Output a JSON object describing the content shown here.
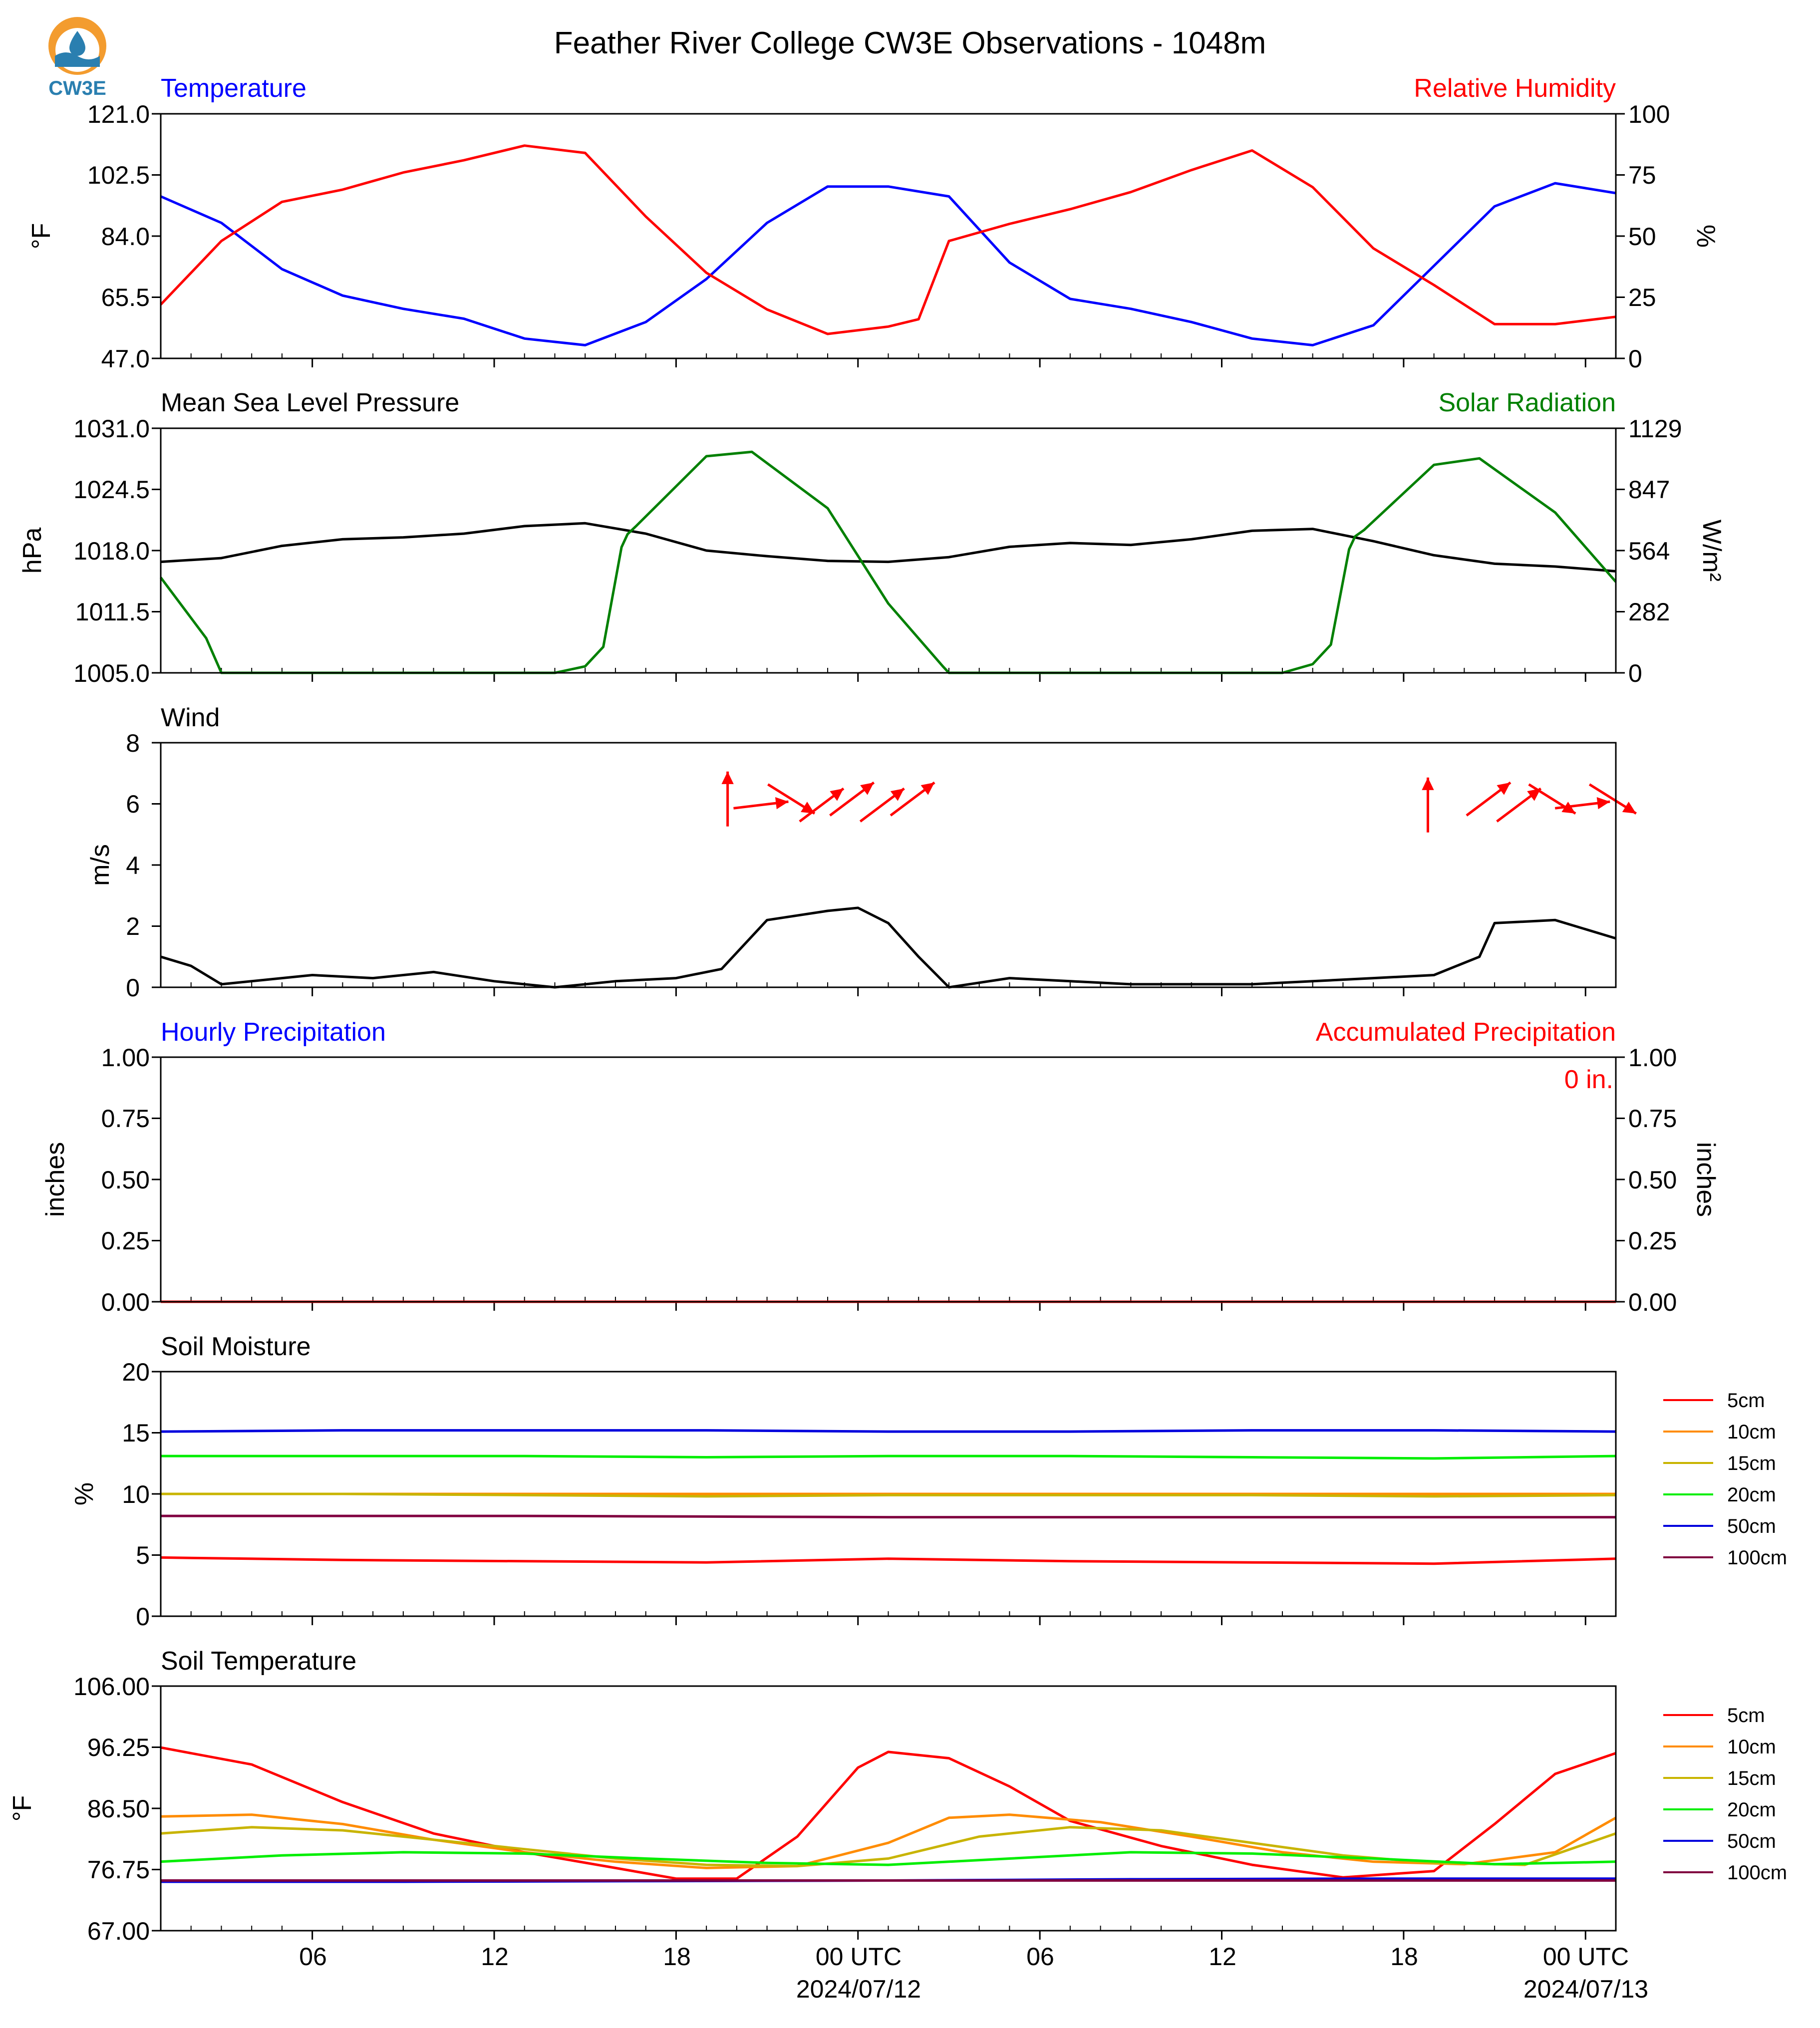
{
  "header": {
    "title": "Feather River College CW3E Observations - 1048m",
    "logo_text": "CW3E"
  },
  "colors": {
    "red": "#ff0000",
    "blue": "#0000ff",
    "green": "#008000",
    "black": "#000000",
    "soil_5cm": "#ff0000",
    "soil_10cm": "#ff8c00",
    "soil_15cm": "#c8b400",
    "soil_20cm": "#00ee00",
    "soil_50cm": "#0000dd",
    "soil_100cm": "#800040"
  },
  "time_axis": {
    "range_hours": [
      -23,
      25
    ],
    "tick_hours": [
      -18,
      -12,
      -6,
      0,
      6,
      12,
      18,
      24
    ],
    "tick_labels": [
      "06",
      "12",
      "18",
      "00 UTC",
      "06",
      "12",
      "18",
      "00 UTC"
    ],
    "date_labels": [
      "2024/07/12",
      "2024/07/13"
    ]
  },
  "panels": {
    "temp_rh": {
      "left_title": "Temperature",
      "right_title": "Relative Humidity",
      "left_unit": "°F",
      "right_unit": "%",
      "left_ticks": [
        "121.0",
        "102.5",
        "84.0",
        "65.5",
        "47.0"
      ],
      "right_ticks": [
        "100",
        "75",
        "50",
        "25",
        "0"
      ]
    },
    "pressure_solar": {
      "left_title": "Mean Sea Level Pressure",
      "right_title": "Solar Radiation",
      "left_unit": "hPa",
      "right_unit": "W/m²",
      "left_ticks": [
        "1031.0",
        "1024.5",
        "1018.0",
        "1011.5",
        "1005.0"
      ],
      "right_ticks": [
        "1129",
        "847",
        "564",
        "282",
        "0"
      ]
    },
    "wind": {
      "left_title": "Wind",
      "left_unit": "m/s",
      "left_ticks": [
        "8",
        "6",
        "4",
        "2",
        "0"
      ]
    },
    "precip": {
      "left_title": "Hourly Precipitation",
      "right_title": "Accumulated Precipitation",
      "left_unit": "inches",
      "right_unit": "inches",
      "left_ticks": [
        "1.00",
        "0.75",
        "0.50",
        "0.25",
        "0.00"
      ],
      "right_ticks": [
        "1.00",
        "0.75",
        "0.50",
        "0.25",
        "0.00"
      ],
      "accum_label": "0 in."
    },
    "soil_moisture": {
      "left_title": "Soil Moisture",
      "left_unit": "%",
      "left_ticks": [
        "20",
        "15",
        "10",
        "5",
        "0"
      ]
    },
    "soil_temp": {
      "left_title": "Soil Temperature",
      "left_unit": "°F",
      "left_ticks": [
        "106.00",
        "96.25",
        "86.50",
        "76.75",
        "67.00"
      ]
    }
  },
  "legend": {
    "items": [
      "5cm",
      "10cm",
      "15cm",
      "20cm",
      "50cm",
      "100cm"
    ]
  },
  "chart_data": [
    {
      "type": "line",
      "title": "Temperature",
      "ylabel": "°F",
      "ylim": [
        47,
        121
      ],
      "x_unit": "hours relative to 2024/07/12 00 UTC",
      "series": [
        {
          "name": "Temperature",
          "color": "#0000ff",
          "x": [
            -23,
            -21,
            -19,
            -17,
            -15,
            -13,
            -11,
            -9,
            -7,
            -5,
            -3,
            -1,
            1,
            3,
            5,
            7,
            9,
            11,
            13,
            15,
            17,
            19,
            21,
            23,
            25
          ],
          "y": [
            96,
            88,
            74,
            66,
            62,
            59,
            53,
            51,
            58,
            71,
            88,
            99,
            99,
            96,
            76,
            65,
            62,
            58,
            53,
            51,
            57,
            75,
            93,
            100,
            97
          ]
        }
      ]
    },
    {
      "type": "line",
      "title": "Relative Humidity",
      "ylabel": "%",
      "ylim": [
        0,
        100
      ],
      "x_unit": "hours relative to 2024/07/12 00 UTC",
      "series": [
        {
          "name": "Relative Humidity",
          "color": "#ff0000",
          "x": [
            -23,
            -21,
            -19,
            -17,
            -15,
            -13,
            -11,
            -9,
            -7,
            -5,
            -3,
            -1,
            1,
            2,
            3,
            5,
            7,
            9,
            11,
            13,
            15,
            17,
            19,
            21,
            23,
            25
          ],
          "y": [
            22,
            48,
            64,
            69,
            76,
            81,
            87,
            84,
            58,
            35,
            20,
            10,
            13,
            16,
            48,
            55,
            61,
            68,
            77,
            85,
            70,
            45,
            30,
            14,
            14,
            17
          ]
        }
      ]
    },
    {
      "type": "line",
      "title": "Mean Sea Level Pressure",
      "ylabel": "hPa",
      "ylim": [
        1005,
        1031
      ],
      "x_unit": "hours relative to 2024/07/12 00 UTC",
      "series": [
        {
          "name": "Mean Sea Level Pressure",
          "color": "#000000",
          "x": [
            -23,
            -21,
            -19,
            -17,
            -15,
            -13,
            -11,
            -9,
            -7,
            -5,
            -3,
            -1,
            1,
            3,
            5,
            7,
            9,
            11,
            13,
            15,
            17,
            19,
            21,
            23,
            25
          ],
          "y": [
            1016.8,
            1017.2,
            1018.5,
            1019.2,
            1019.4,
            1019.8,
            1020.6,
            1020.9,
            1019.8,
            1018.0,
            1017.4,
            1016.9,
            1016.8,
            1017.3,
            1018.4,
            1018.8,
            1018.6,
            1019.2,
            1020.1,
            1020.3,
            1019.0,
            1017.5,
            1016.6,
            1016.3,
            1015.8
          ]
        }
      ]
    },
    {
      "type": "line",
      "title": "Solar Radiation",
      "ylabel": "W/m²",
      "ylim": [
        0,
        1129
      ],
      "x_unit": "hours relative to 2024/07/12 00 UTC",
      "series": [
        {
          "name": "Solar Radiation",
          "color": "#008000",
          "x": [
            -23,
            -21.5,
            -21,
            -10,
            -9,
            -8.4,
            -7.8,
            -7.6,
            -7.3,
            -5,
            -3.5,
            -1,
            1,
            2.8,
            3.0,
            14,
            15,
            15.6,
            16.2,
            16.4,
            16.7,
            19,
            20.5,
            23,
            25
          ],
          "y": [
            440,
            160,
            0,
            0,
            30,
            120,
            580,
            640,
            680,
            1000,
            1020,
            760,
            320,
            30,
            0,
            0,
            40,
            130,
            570,
            630,
            660,
            960,
            990,
            740,
            420
          ]
        }
      ]
    },
    {
      "type": "line",
      "title": "Wind",
      "ylabel": "m/s",
      "ylim": [
        0,
        8
      ],
      "x_unit": "hours relative to 2024/07/12 00 UTC",
      "series": [
        {
          "name": "Wind",
          "color": "#000000",
          "x": [
            -23,
            -22,
            -21,
            -18,
            -16,
            -14,
            -12,
            -10,
            -8,
            -6,
            -4.5,
            -3,
            -1,
            0,
            1,
            2,
            3,
            5,
            7,
            9,
            11,
            13,
            15,
            17,
            19,
            20.5,
            21,
            23,
            25
          ],
          "y": [
            1.0,
            0.7,
            0.1,
            0.4,
            0.3,
            0.5,
            0.2,
            0.0,
            0.2,
            0.3,
            0.6,
            2.2,
            2.5,
            2.6,
            2.1,
            1.0,
            0.0,
            0.3,
            0.2,
            0.1,
            0.1,
            0.1,
            0.2,
            0.3,
            0.4,
            1.0,
            2.1,
            2.2,
            1.6
          ]
        }
      ],
      "wind_vectors": [
        {
          "x": -4.3,
          "direction": "N"
        },
        {
          "x": -3.2,
          "direction": "E"
        },
        {
          "x": -2.2,
          "direction": "SE"
        },
        {
          "x": -1.2,
          "direction": "NE"
        },
        {
          "x": -0.2,
          "direction": "NE"
        },
        {
          "x": 0.8,
          "direction": "NE"
        },
        {
          "x": 1.8,
          "direction": "NE"
        },
        {
          "x": 18.8,
          "direction": "N"
        },
        {
          "x": 20.8,
          "direction": "NE"
        },
        {
          "x": 21.8,
          "direction": "NE"
        },
        {
          "x": 22.9,
          "direction": "SE"
        },
        {
          "x": 23.9,
          "direction": "E"
        },
        {
          "x": 24.9,
          "direction": "SE"
        }
      ]
    },
    {
      "type": "line",
      "title": "Hourly Precipitation",
      "ylabel": "inches",
      "ylim": [
        0,
        1
      ],
      "x_unit": "hours relative to 2024/07/12 00 UTC",
      "series": [
        {
          "name": "Hourly Precipitation",
          "color": "#0000ff",
          "x": [
            -23,
            25
          ],
          "y": [
            0,
            0
          ]
        },
        {
          "name": "Accumulated Precipitation",
          "color": "#ff0000",
          "x": [
            -23,
            25
          ],
          "y": [
            0,
            0
          ]
        }
      ]
    },
    {
      "type": "line",
      "title": "Soil Moisture",
      "ylabel": "%",
      "ylim": [
        0,
        20
      ],
      "x_unit": "hours relative to 2024/07/12 00 UTC",
      "series": [
        {
          "name": "5cm",
          "color": "#ff0000",
          "x": [
            -23,
            -17,
            -11,
            -5,
            1,
            7,
            13,
            19,
            25
          ],
          "y": [
            4.8,
            4.6,
            4.5,
            4.4,
            4.7,
            4.5,
            4.4,
            4.3,
            4.7
          ]
        },
        {
          "name": "10cm",
          "color": "#ff8c00",
          "x": [
            -23,
            25
          ],
          "y": [
            10.0,
            10.0
          ]
        },
        {
          "name": "15cm",
          "color": "#c8b400",
          "x": [
            -23,
            -17,
            -11,
            -5,
            1,
            7,
            13,
            19,
            25
          ],
          "y": [
            10.0,
            10.0,
            9.9,
            9.8,
            9.9,
            9.9,
            9.9,
            9.8,
            9.9
          ]
        },
        {
          "name": "20cm",
          "color": "#00ee00",
          "x": [
            -23,
            -17,
            -11,
            -5,
            1,
            7,
            13,
            19,
            25
          ],
          "y": [
            13.1,
            13.1,
            13.1,
            13.0,
            13.1,
            13.1,
            13.0,
            12.9,
            13.1
          ]
        },
        {
          "name": "50cm",
          "color": "#0000dd",
          "x": [
            -23,
            -17,
            -11,
            -5,
            1,
            7,
            13,
            19,
            25
          ],
          "y": [
            15.1,
            15.2,
            15.2,
            15.2,
            15.1,
            15.1,
            15.2,
            15.2,
            15.1
          ]
        },
        {
          "name": "100cm",
          "color": "#800040",
          "x": [
            -23,
            -11,
            1,
            13,
            25
          ],
          "y": [
            8.2,
            8.2,
            8.1,
            8.1,
            8.1
          ]
        }
      ]
    },
    {
      "type": "line",
      "title": "Soil Temperature",
      "ylabel": "°F",
      "ylim": [
        67,
        106
      ],
      "x_unit": "hours relative to 2024/07/12 00 UTC",
      "series": [
        {
          "name": "5cm",
          "color": "#ff0000",
          "x": [
            -23,
            -20,
            -17,
            -14,
            -11,
            -8,
            -6,
            -4,
            -2,
            0,
            1,
            3,
            5,
            7,
            10,
            13,
            16,
            19,
            21,
            23,
            25
          ],
          "y": [
            96.2,
            93.5,
            87.5,
            82.5,
            79.5,
            77.0,
            75.3,
            75.3,
            82.0,
            93.0,
            95.5,
            94.5,
            90.0,
            84.5,
            80.5,
            77.5,
            75.5,
            76.5,
            84.0,
            92.0,
            95.3
          ]
        },
        {
          "name": "10cm",
          "color": "#ff8c00",
          "x": [
            -23,
            -20,
            -17,
            -14,
            -11,
            -8,
            -5,
            -2,
            1,
            3,
            5,
            8,
            11,
            14,
            17,
            20,
            23,
            25
          ],
          "y": [
            85.2,
            85.5,
            84.0,
            81.5,
            79.5,
            78.0,
            77.0,
            77.3,
            81.0,
            85.0,
            85.5,
            84.3,
            82.0,
            79.5,
            78.0,
            77.6,
            79.5,
            85.0
          ]
        },
        {
          "name": "15cm",
          "color": "#c8b400",
          "x": [
            -23,
            -20,
            -17,
            -14,
            -11,
            -8,
            -5,
            -2,
            1,
            4,
            7,
            10,
            13,
            16,
            19,
            22,
            25
          ],
          "y": [
            82.5,
            83.5,
            83.0,
            81.5,
            80.0,
            78.5,
            77.5,
            77.3,
            78.5,
            82.0,
            83.5,
            83.0,
            81.0,
            79.0,
            77.8,
            77.5,
            82.5
          ]
        },
        {
          "name": "20cm",
          "color": "#00ee00",
          "x": [
            -23,
            -19,
            -15,
            -11,
            -7,
            -3,
            1,
            5,
            9,
            13,
            17,
            21,
            25
          ],
          "y": [
            78.0,
            79.0,
            79.5,
            79.3,
            78.5,
            77.8,
            77.5,
            78.5,
            79.5,
            79.3,
            78.5,
            77.6,
            78.0
          ]
        },
        {
          "name": "50cm",
          "color": "#0000dd",
          "x": [
            -23,
            -15,
            -7,
            1,
            9,
            17,
            25
          ],
          "y": [
            74.8,
            74.8,
            74.9,
            75.0,
            75.2,
            75.3,
            75.3
          ]
        },
        {
          "name": "100cm",
          "color": "#800040",
          "x": [
            -23,
            25
          ],
          "y": [
            75.0,
            75.0
          ]
        }
      ]
    }
  ]
}
